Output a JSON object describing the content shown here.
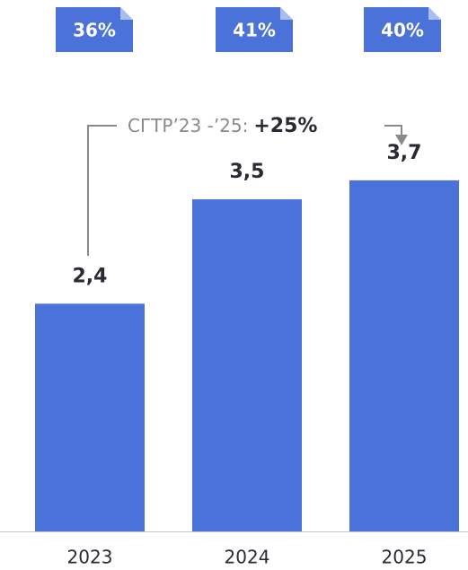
{
  "chart_data": {
    "type": "bar",
    "categories": [
      "2023",
      "2024",
      "2025"
    ],
    "values": [
      2.4,
      3.5,
      3.7
    ],
    "value_labels": [
      "2,4",
      "3,5",
      "3,7"
    ],
    "color": "#4a72d8",
    "badges": [
      "36%",
      "41%",
      "40%"
    ],
    "annotation": {
      "label": "СГТР’23 -’25:",
      "value": "+25%"
    }
  }
}
